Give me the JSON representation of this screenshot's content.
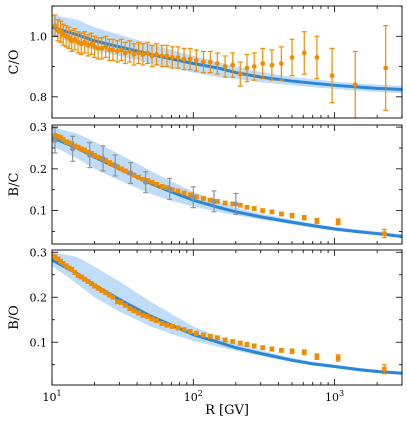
{
  "chart_data": [
    {
      "type": "scatter",
      "title": "",
      "xlabel": "",
      "ylabel": "C/O",
      "xscale": "log",
      "xlim": [
        10,
        3000
      ],
      "ylim": [
        0.73,
        1.1
      ],
      "yticks": [
        0.8,
        1.0
      ],
      "ytick_labels": [
        "0.8",
        "1.0"
      ],
      "xtick_labels_shown": false,
      "model_curve": {
        "x": [
          10,
          15,
          20,
          30,
          50,
          70,
          100,
          150,
          200,
          300,
          500,
          700,
          1000,
          1500,
          2000,
          3000
        ],
        "y": [
          1.03,
          1.005,
          0.985,
          0.965,
          0.94,
          0.925,
          0.91,
          0.895,
          0.88,
          0.865,
          0.852,
          0.845,
          0.838,
          0.832,
          0.828,
          0.824
        ],
        "band_low": [
          1.0,
          0.975,
          0.955,
          0.935,
          0.91,
          0.895,
          0.88,
          0.865,
          0.86,
          0.848,
          0.838,
          0.832,
          0.826,
          0.82,
          0.816,
          0.812
        ],
        "band_high": [
          1.07,
          1.055,
          1.03,
          1.005,
          0.975,
          0.955,
          0.935,
          0.915,
          0.9,
          0.882,
          0.866,
          0.858,
          0.85,
          0.844,
          0.84,
          0.836
        ]
      },
      "series": [
        {
          "marker": "circle",
          "x": [
            10.5,
            11,
            11.5,
            12,
            12.6,
            13.2,
            13.8,
            14.5,
            15.3,
            16.1,
            17,
            18,
            19,
            20,
            21.2,
            22.5,
            24,
            25.5,
            27,
            29,
            31,
            33,
            35.5,
            38,
            41,
            44,
            47.5,
            51,
            55,
            60,
            65,
            71,
            78,
            86,
            95,
            105,
            118,
            132,
            148,
            168,
            190,
            215,
            240,
            270,
            310,
            360,
            420,
            500,
            610,
            750,
            960,
            1400,
            2300
          ],
          "y": [
            1.035,
            1.02,
            1.015,
            1.005,
            1.0,
            0.995,
            0.985,
            0.99,
            0.98,
            0.975,
            0.98,
            0.97,
            0.975,
            0.965,
            0.96,
            0.96,
            0.965,
            0.955,
            0.955,
            0.95,
            0.955,
            0.945,
            0.95,
            0.94,
            0.945,
            0.94,
            0.945,
            0.935,
            0.94,
            0.935,
            0.935,
            0.93,
            0.93,
            0.925,
            0.925,
            0.92,
            0.915,
            0.915,
            0.91,
            0.9,
            0.905,
            0.875,
            0.895,
            0.9,
            0.91,
            0.905,
            0.91,
            0.93,
            0.945,
            0.93,
            0.87,
            0.84,
            0.895
          ],
          "err": [
            0.035,
            0.035,
            0.035,
            0.035,
            0.035,
            0.035,
            0.035,
            0.035,
            0.035,
            0.035,
            0.035,
            0.035,
            0.035,
            0.035,
            0.035,
            0.035,
            0.035,
            0.035,
            0.035,
            0.035,
            0.035,
            0.035,
            0.035,
            0.035,
            0.035,
            0.035,
            0.035,
            0.035,
            0.035,
            0.035,
            0.035,
            0.035,
            0.035,
            0.035,
            0.035,
            0.035,
            0.035,
            0.035,
            0.035,
            0.035,
            0.04,
            0.04,
            0.045,
            0.045,
            0.05,
            0.05,
            0.055,
            0.06,
            0.07,
            0.07,
            0.09,
            0.11,
            0.14
          ]
        }
      ]
    },
    {
      "type": "scatter",
      "title": "",
      "xlabel": "",
      "ylabel": "B/C",
      "xscale": "log",
      "xlim": [
        10,
        3000
      ],
      "ylim": [
        0.02,
        0.305
      ],
      "yticks": [
        0.1,
        0.2,
        0.3
      ],
      "ytick_labels": [
        "0.1",
        "0.2",
        "0.3"
      ],
      "xtick_labels_shown": false,
      "model_curve": {
        "x": [
          10,
          15,
          20,
          30,
          50,
          70,
          100,
          150,
          200,
          300,
          500,
          700,
          1000,
          1500,
          2000,
          3000
        ],
        "y": [
          0.275,
          0.25,
          0.228,
          0.2,
          0.165,
          0.145,
          0.125,
          0.108,
          0.097,
          0.085,
          0.072,
          0.064,
          0.056,
          0.049,
          0.045,
          0.038
        ],
        "band_low": [
          0.255,
          0.225,
          0.2,
          0.172,
          0.14,
          0.123,
          0.11,
          0.097,
          0.089,
          0.079,
          0.067,
          0.059,
          0.052,
          0.045,
          0.041,
          0.034
        ],
        "band_high": [
          0.3,
          0.285,
          0.265,
          0.235,
          0.195,
          0.17,
          0.145,
          0.122,
          0.107,
          0.093,
          0.078,
          0.069,
          0.061,
          0.054,
          0.05,
          0.043
        ]
      },
      "series": [
        {
          "marker": "square",
          "x": [
            10.5,
            11,
            11.5,
            12,
            12.6,
            13.2,
            13.8,
            14.5,
            15.3,
            16.1,
            17,
            18,
            19,
            20,
            21.2,
            22.5,
            24,
            25.5,
            27,
            29,
            31,
            33,
            35.5,
            38,
            41,
            44,
            47.5,
            51,
            55,
            60,
            65,
            71,
            78,
            86,
            95,
            105,
            118,
            132,
            148,
            168,
            190,
            215,
            240,
            270,
            310,
            360,
            420,
            500,
            610,
            750,
            1060,
            2250
          ],
          "y": [
            0.28,
            0.278,
            0.275,
            0.27,
            0.265,
            0.262,
            0.26,
            0.255,
            0.252,
            0.248,
            0.245,
            0.24,
            0.237,
            0.232,
            0.228,
            0.225,
            0.22,
            0.215,
            0.21,
            0.205,
            0.2,
            0.195,
            0.19,
            0.185,
            0.18,
            0.175,
            0.172,
            0.168,
            0.163,
            0.158,
            0.155,
            0.15,
            0.147,
            0.142,
            0.138,
            0.133,
            0.129,
            0.125,
            0.122,
            0.118,
            0.116,
            0.113,
            0.108,
            0.105,
            0.1,
            0.097,
            0.092,
            0.088,
            0.083,
            0.075,
            0.073,
            0.045
          ],
          "err": [
            0.004,
            0.004,
            0.004,
            0.004,
            0.004,
            0.004,
            0.004,
            0.004,
            0.004,
            0.004,
            0.004,
            0.004,
            0.004,
            0.004,
            0.004,
            0.004,
            0.004,
            0.004,
            0.004,
            0.004,
            0.004,
            0.004,
            0.004,
            0.004,
            0.004,
            0.004,
            0.004,
            0.004,
            0.004,
            0.004,
            0.004,
            0.004,
            0.004,
            0.004,
            0.004,
            0.004,
            0.004,
            0.004,
            0.004,
            0.004,
            0.004,
            0.004,
            0.004,
            0.004,
            0.004,
            0.004,
            0.004,
            0.005,
            0.005,
            0.006,
            0.007,
            0.01
          ]
        },
        {
          "marker": "circle",
          "x": [
            10.5,
            14,
            18.5,
            23,
            28,
            36,
            46,
            68,
            100,
            140,
            200
          ],
          "y": [
            0.268,
            0.248,
            0.233,
            0.225,
            0.208,
            0.19,
            0.168,
            0.152,
            0.132,
            0.122,
            0.116
          ],
          "err": [
            0.03,
            0.03,
            0.03,
            0.03,
            0.025,
            0.025,
            0.025,
            0.025,
            0.025,
            0.025,
            0.025
          ]
        }
      ]
    },
    {
      "type": "scatter",
      "title": "",
      "xlabel": "R [GV]",
      "ylabel": "B/O",
      "xscale": "log",
      "xlim": [
        10,
        3000
      ],
      "ylim": [
        0.005,
        0.305
      ],
      "yticks": [
        0.1,
        0.2,
        0.3
      ],
      "ytick_labels": [
        "0.1",
        "0.2",
        "0.3"
      ],
      "xticks": [
        10,
        100,
        1000
      ],
      "xtick_labels": [
        "10^1",
        "10^2",
        "10^3"
      ],
      "model_curve": {
        "x": [
          10,
          15,
          20,
          30,
          50,
          70,
          100,
          150,
          200,
          300,
          500,
          700,
          1000,
          1500,
          2000,
          3000
        ],
        "y": [
          0.283,
          0.253,
          0.227,
          0.195,
          0.158,
          0.138,
          0.117,
          0.1,
          0.088,
          0.075,
          0.06,
          0.052,
          0.046,
          0.039,
          0.035,
          0.031
        ],
        "band_low": [
          0.27,
          0.23,
          0.2,
          0.168,
          0.135,
          0.118,
          0.103,
          0.09,
          0.081,
          0.07,
          0.056,
          0.049,
          0.043,
          0.036,
          0.032,
          0.028
        ],
        "band_high": [
          0.3,
          0.29,
          0.268,
          0.235,
          0.19,
          0.163,
          0.135,
          0.113,
          0.098,
          0.082,
          0.065,
          0.057,
          0.05,
          0.043,
          0.039,
          0.034
        ]
      },
      "series": [
        {
          "marker": "square",
          "x": [
            10.5,
            11,
            11.5,
            12,
            12.6,
            13.2,
            13.8,
            14.5,
            15.3,
            16.1,
            17,
            18,
            19,
            20,
            21.2,
            22.5,
            24,
            25.5,
            27,
            29,
            31,
            33,
            35.5,
            38,
            41,
            44,
            47.5,
            51,
            55,
            60,
            65,
            71,
            78,
            86,
            95,
            105,
            118,
            132,
            148,
            168,
            190,
            215,
            240,
            270,
            310,
            360,
            420,
            500,
            610,
            750,
            1060,
            2250
          ],
          "y": [
            0.29,
            0.285,
            0.28,
            0.275,
            0.27,
            0.265,
            0.262,
            0.255,
            0.248,
            0.245,
            0.24,
            0.235,
            0.23,
            0.225,
            0.22,
            0.215,
            0.21,
            0.205,
            0.2,
            0.19,
            0.188,
            0.182,
            0.175,
            0.17,
            0.165,
            0.16,
            0.157,
            0.152,
            0.148,
            0.142,
            0.138,
            0.135,
            0.132,
            0.128,
            0.124,
            0.12,
            0.116,
            0.113,
            0.11,
            0.105,
            0.102,
            0.098,
            0.095,
            0.092,
            0.088,
            0.085,
            0.082,
            0.08,
            0.078,
            0.068,
            0.065,
            0.04
          ],
          "err": [
            0.004,
            0.004,
            0.004,
            0.004,
            0.004,
            0.004,
            0.004,
            0.004,
            0.004,
            0.004,
            0.004,
            0.004,
            0.004,
            0.004,
            0.004,
            0.004,
            0.004,
            0.004,
            0.004,
            0.004,
            0.004,
            0.004,
            0.004,
            0.004,
            0.004,
            0.004,
            0.004,
            0.004,
            0.004,
            0.004,
            0.004,
            0.004,
            0.004,
            0.004,
            0.004,
            0.004,
            0.004,
            0.004,
            0.004,
            0.004,
            0.004,
            0.004,
            0.004,
            0.004,
            0.004,
            0.004,
            0.004,
            0.005,
            0.005,
            0.006,
            0.007,
            0.01
          ]
        }
      ]
    }
  ],
  "colors": {
    "data": "#f08c00",
    "data_gray": "#8e949c",
    "model_line": "#2a86d8",
    "model_band": "#a9d0f5"
  }
}
